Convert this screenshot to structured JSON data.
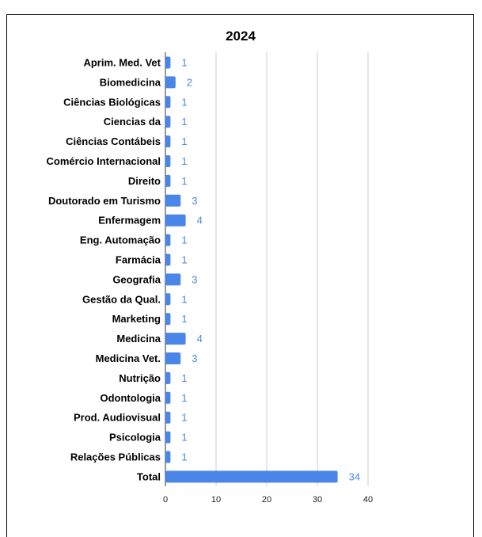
{
  "chart_data": {
    "type": "bar",
    "orientation": "horizontal",
    "title": "2024",
    "xlabel": "",
    "ylabel": "",
    "categories": [
      "Aprim. Med. Vet",
      "Biomedicina",
      "Ciências Biológicas",
      "Ciencias da",
      "Ciências Contábeis",
      "Comércio Internacional",
      "Direito",
      "Doutorado em Turismo",
      "Enfermagem",
      "Eng. Automação",
      "Farmácia",
      "Geografia",
      "Gestão da Qual.",
      "Marketing",
      "Medicina",
      "Medicina Vet.",
      "Nutrição",
      "Odontologia",
      "Prod. Audiovisual",
      "Psicologia",
      "Relações Públicas",
      "Total"
    ],
    "values": [
      1,
      2,
      1,
      1,
      1,
      1,
      1,
      3,
      4,
      1,
      1,
      3,
      1,
      1,
      4,
      3,
      1,
      1,
      1,
      1,
      1,
      34
    ],
    "xlim": [
      0,
      40
    ],
    "xticks": [
      0,
      10,
      20,
      30,
      40
    ],
    "grid": true,
    "data_labels": true,
    "bar_color": "#4a86e8",
    "label_color": "#4a86e8"
  }
}
